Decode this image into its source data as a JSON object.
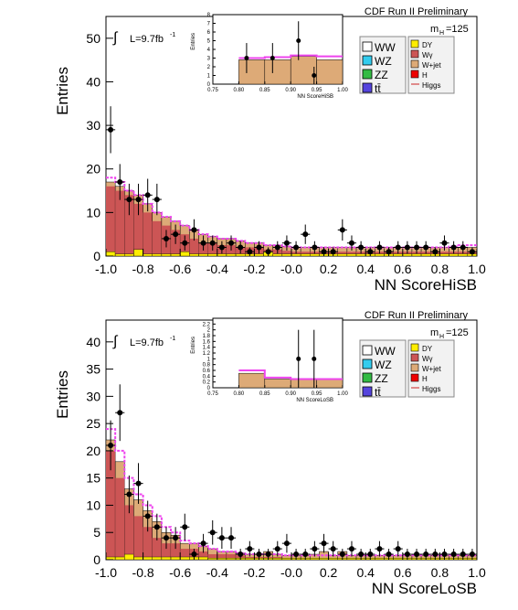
{
  "chart_data": [
    {
      "type": "bar",
      "experiment_label": "CDF Run II Preliminary",
      "mass_label_main": "m",
      "mass_label_sub": "H",
      "mass_label_value": "=125",
      "lumi_text": "L=9.7fb",
      "lumi_sup": "-1",
      "integral_symbol": "∫",
      "xlabel": "NN ScoreHiSB",
      "ylabel": "Entries",
      "xlim": [
        -1.0,
        1.0
      ],
      "ylim": [
        0,
        55
      ],
      "x_ticks": [
        "-1.0",
        "-0.8",
        "-0.6",
        "-0.4",
        "-0.2",
        "-0.0",
        "0.2",
        "0.4",
        "0.6",
        "0.8",
        "1.0"
      ],
      "y_ticks": [
        "0",
        "10",
        "20",
        "30",
        "40",
        "50"
      ],
      "legend": {
        "left": [
          {
            "label": "WW",
            "color": "#ffffff"
          },
          {
            "label": "WZ",
            "color": "#33ccee"
          },
          {
            "label": "ZZ",
            "color": "#33bb44"
          },
          {
            "label": "tt̄",
            "color": "#5544dd"
          }
        ],
        "right": [
          {
            "label": "DY",
            "color": "#ffee00",
            "kind": "box"
          },
          {
            "label": "Wγ",
            "color": "#cc5555",
            "kind": "box"
          },
          {
            "label": "W+jet",
            "color": "#ddaa77",
            "kind": "box"
          },
          {
            "label": "H",
            "color": "#ee0000",
            "kind": "box"
          },
          {
            "label": "Higgs",
            "color": "#cc2222",
            "kind": "line"
          }
        ]
      },
      "bin_edges_from": -1.0,
      "bin_width": 0.05,
      "stack_bkg_total": [
        17,
        16,
        15,
        14,
        12,
        10,
        9,
        8,
        7,
        6,
        5,
        4.5,
        4,
        4,
        3.5,
        3,
        3,
        2.5,
        2.5,
        2.2,
        2,
        2,
        2,
        2,
        2,
        2,
        2,
        2,
        2,
        2,
        2,
        2,
        2,
        2,
        2,
        2,
        2,
        2,
        2,
        2
      ],
      "stack_wgamma": [
        16,
        15,
        14,
        12,
        10,
        8,
        7,
        6,
        5,
        4,
        3,
        3,
        2.5,
        2.5,
        2,
        2,
        2,
        1.5,
        1.5,
        1.2,
        1,
        1,
        1,
        1,
        1,
        1,
        1,
        1,
        1,
        1,
        1,
        1,
        1,
        1,
        1,
        1,
        1,
        1,
        1,
        1
      ],
      "stack_dy": [
        1,
        0.5,
        0.5,
        1.5,
        0.5,
        0.5,
        0.5,
        0.5,
        1,
        0.5,
        0.5,
        0.5,
        0.5,
        0.5,
        0.5,
        0.5,
        0.5,
        1,
        0.5,
        0.5,
        0.5,
        0.5,
        0.5,
        0.5,
        0.5,
        0.5,
        0.5,
        0.5,
        0.5,
        0.5,
        0.5,
        0.5,
        0.5,
        0.5,
        0.5,
        0.5,
        0.5,
        0.5,
        0.5,
        0.5
      ],
      "signal_curve": [
        18,
        17,
        15,
        14,
        12,
        10,
        9,
        8,
        7,
        6,
        5,
        4.5,
        4,
        4,
        3.5,
        3,
        3,
        2.5,
        2.5,
        2.2,
        2,
        2,
        2,
        2,
        2,
        2,
        2,
        2,
        2,
        2,
        2,
        2,
        2,
        2,
        2,
        2,
        2,
        2.2,
        2.5,
        2.5
      ],
      "data_points": {
        "x": [
          -0.975,
          -0.925,
          -0.875,
          -0.825,
          -0.775,
          -0.725,
          -0.675,
          -0.625,
          -0.575,
          -0.525,
          -0.475,
          -0.425,
          -0.375,
          -0.325,
          -0.275,
          -0.225,
          -0.175,
          -0.125,
          -0.075,
          -0.025,
          0.025,
          0.075,
          0.125,
          0.175,
          0.225,
          0.275,
          0.325,
          0.375,
          0.425,
          0.475,
          0.525,
          0.575,
          0.625,
          0.675,
          0.725,
          0.775,
          0.825,
          0.875,
          0.925,
          0.975
        ],
        "y": [
          29,
          17,
          13,
          13,
          14,
          13,
          4,
          5,
          3,
          6,
          3,
          3,
          2,
          3,
          2,
          1,
          2,
          1,
          2,
          3,
          2,
          5,
          2,
          1,
          1,
          6,
          3,
          2,
          1,
          2,
          1,
          2,
          2,
          2,
          2,
          1,
          3,
          2,
          2,
          1
        ]
      },
      "inset": {
        "xlabel": "NN ScoreHiSB",
        "ylabel": "Entries",
        "xlim": [
          0.75,
          1.0
        ],
        "ylim": [
          0,
          8
        ],
        "x_ticks": [
          "0.75",
          "0.80",
          "0.85",
          "0.90",
          "0.95",
          "1.00"
        ],
        "y_ticks": [
          "0",
          "1",
          "2",
          "3",
          "4",
          "5",
          "6",
          "7",
          "8"
        ],
        "bkg_total": [
          2.8,
          2.8,
          3.2,
          2.8
        ],
        "higgs_curve": [
          3.0,
          3.1,
          3.3,
          3.2
        ],
        "data_x": [
          0.815,
          0.865,
          0.915,
          0.945
        ],
        "data_y": [
          3,
          3,
          5,
          1
        ]
      }
    },
    {
      "type": "bar",
      "experiment_label": "CDF Run II Preliminary",
      "mass_label_main": "m",
      "mass_label_sub": "H",
      "mass_label_value": "=125",
      "lumi_text": "L=9.7fb",
      "lumi_sup": "-1",
      "integral_symbol": "∫",
      "xlabel": "NN ScoreLoSB",
      "ylabel": "Entries",
      "xlim": [
        -1.0,
        1.0
      ],
      "ylim": [
        0,
        44
      ],
      "x_ticks": [
        "-1.0",
        "-0.8",
        "-0.6",
        "-0.4",
        "-0.2",
        "-0.0",
        "0.2",
        "0.4",
        "0.6",
        "0.8",
        "1.0"
      ],
      "y_ticks": [
        "0",
        "5",
        "10",
        "15",
        "20",
        "25",
        "30",
        "35",
        "40"
      ],
      "legend": {
        "left": [
          {
            "label": "WW",
            "color": "#ffffff"
          },
          {
            "label": "WZ",
            "color": "#33ccee"
          },
          {
            "label": "ZZ",
            "color": "#33bb44"
          },
          {
            "label": "tt̄",
            "color": "#5544dd"
          }
        ],
        "right": [
          {
            "label": "DY",
            "color": "#ffee00",
            "kind": "box"
          },
          {
            "label": "Wγ",
            "color": "#cc5555",
            "kind": "box"
          },
          {
            "label": "W+jet",
            "color": "#ddaa77",
            "kind": "box"
          },
          {
            "label": "H",
            "color": "#ee0000",
            "kind": "box"
          },
          {
            "label": "Higgs",
            "color": "#cc2222",
            "kind": "line"
          }
        ]
      },
      "bin_edges_from": -1.0,
      "bin_width": 0.05,
      "stack_bkg_total": [
        22,
        18,
        13,
        11,
        9,
        7,
        5,
        4.5,
        3,
        3,
        2.5,
        2,
        1.5,
        1.5,
        1.2,
        1,
        1,
        1.5,
        1,
        0.8,
        0.8,
        0.8,
        1,
        1.5,
        0.8,
        1.5,
        0.8,
        0.8,
        0.8,
        0.8,
        0.8,
        0.8,
        0.8,
        0.8,
        0.8,
        0.8,
        0.8,
        0.8,
        0.8,
        0.8
      ],
      "stack_wgamma": [
        20,
        15,
        10,
        8,
        6,
        4,
        3,
        3,
        2,
        2,
        1.5,
        1,
        1,
        1,
        0.8,
        0.5,
        0.5,
        0.5,
        0.5,
        0.3,
        0.3,
        0.3,
        0.3,
        0.3,
        0.3,
        0.3,
        0.3,
        0.3,
        0.3,
        0.3,
        0.3,
        0.3,
        0.3,
        0.3,
        0.3,
        0.3,
        0.3,
        0.3,
        0.3,
        0.3
      ],
      "stack_dy": [
        0.5,
        0.5,
        1,
        0.5,
        0.5,
        0.5,
        0.5,
        0.5,
        0.5,
        0.5,
        0.5,
        0.3,
        0.3,
        0.3,
        0.3,
        0.3,
        0.3,
        0.3,
        0.3,
        0.3,
        0.3,
        0.3,
        0.3,
        0.3,
        0.3,
        0.3,
        0.3,
        0.3,
        0.3,
        0.3,
        0.3,
        0.3,
        0.3,
        0.3,
        0.3,
        0.3,
        0.3,
        0.3,
        0.3,
        0.3
      ],
      "signal_curve": [
        24,
        20,
        15,
        12,
        10,
        8,
        6,
        5,
        3.5,
        3,
        2.5,
        2,
        1.5,
        1.5,
        1.2,
        1,
        1,
        1,
        1,
        0.8,
        0.8,
        0.8,
        0.8,
        0.8,
        0.8,
        0.8,
        0.8,
        0.8,
        0.8,
        0.8,
        0.8,
        0.8,
        0.8,
        0.8,
        0.8,
        0.8,
        0.8,
        0.8,
        0.8,
        0.8
      ],
      "data_points": {
        "x": [
          -0.975,
          -0.925,
          -0.875,
          -0.825,
          -0.775,
          -0.725,
          -0.675,
          -0.625,
          -0.575,
          -0.525,
          -0.475,
          -0.425,
          -0.375,
          -0.325,
          -0.275,
          -0.225,
          -0.175,
          -0.125,
          -0.075,
          -0.025,
          0.025,
          0.075,
          0.125,
          0.175,
          0.225,
          0.275,
          0.325,
          0.375,
          0.425,
          0.475,
          0.525,
          0.575,
          0.625,
          0.675,
          0.725,
          0.775,
          0.825,
          0.875,
          0.925,
          0.975
        ],
        "y": [
          21,
          27,
          12,
          14,
          8,
          6,
          4,
          4,
          6,
          1,
          3,
          5,
          4,
          4,
          1,
          2,
          1,
          1,
          2,
          3,
          1,
          1,
          2,
          3,
          2,
          1,
          2,
          1,
          1,
          2,
          1,
          2,
          1,
          1,
          1,
          1,
          1,
          1,
          1,
          1
        ]
      },
      "inset": {
        "xlabel": "NN ScoreLoSB",
        "ylabel": "Entries",
        "xlim": [
          0.75,
          1.0
        ],
        "ylim": [
          0,
          2.4
        ],
        "x_ticks": [
          "0.75",
          "0.80",
          "0.85",
          "0.90",
          "0.95",
          "1.00"
        ],
        "y_ticks": [
          "0",
          "0.2",
          "0.4",
          "0.6",
          "0.8",
          "1",
          "1.2",
          "1.4",
          "1.6",
          "1.8",
          "2",
          "2.2"
        ],
        "bkg_total": [
          0.5,
          0.3,
          0.3,
          0.3
        ],
        "higgs_curve": [
          0.6,
          0.35,
          0.3,
          0.3
        ],
        "data_x": [
          0.915,
          0.945
        ],
        "data_y": [
          1,
          1
        ]
      }
    }
  ]
}
